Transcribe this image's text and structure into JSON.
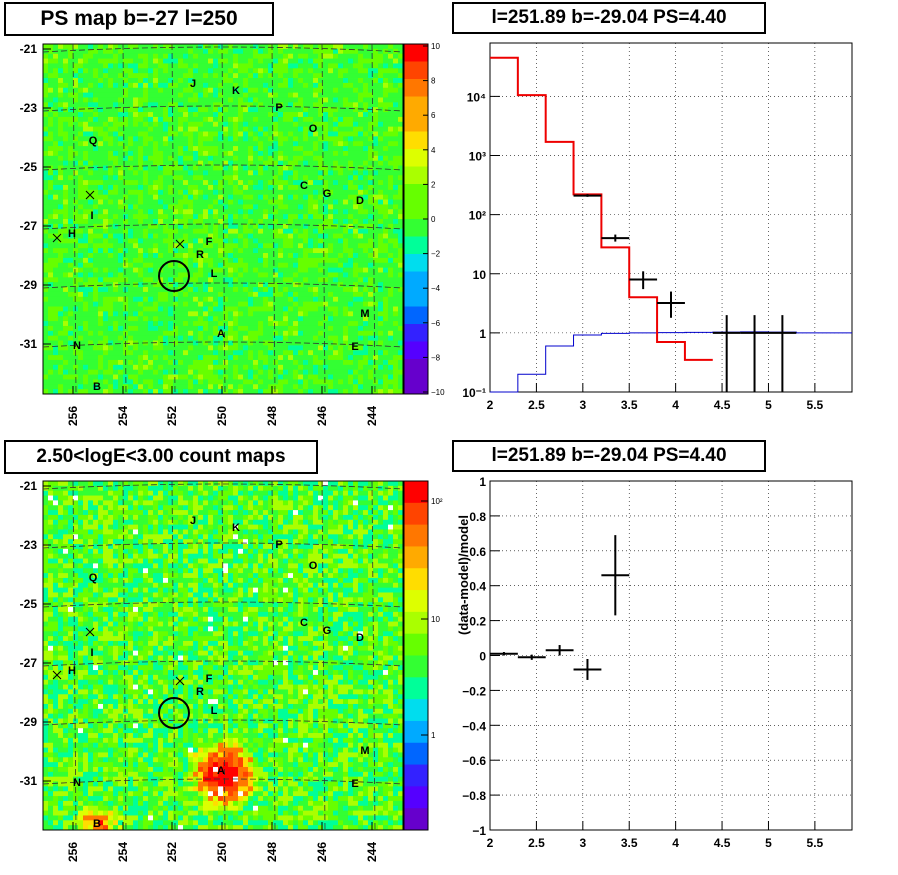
{
  "chart_data": [
    {
      "type": "heatmap",
      "title": "PS map b=-27 l=250",
      "x_ticks": [
        "256",
        "254",
        "252",
        "250",
        "248",
        "246",
        "244"
      ],
      "y_ticks": [
        "-21",
        "-23",
        "-25",
        "-27",
        "-29",
        "-31"
      ],
      "colorbar_ticks": [
        "10",
        "8",
        "6",
        "4",
        "2",
        "0",
        "−2",
        "−4",
        "−6",
        "−8",
        "−10"
      ],
      "colorbar_range": [
        -10,
        10
      ],
      "sources": [
        "J",
        "K",
        "P",
        "O",
        "Q",
        "C",
        "G",
        "D",
        "I",
        "H",
        "F",
        "R",
        "L",
        "M",
        "A",
        "N",
        "E",
        "B"
      ],
      "accent": "#00ff00"
    },
    {
      "type": "line",
      "title": "l=251.89 b=-29.04 PS=4.40",
      "y_scale": "log",
      "xlim": [
        2,
        5.9
      ],
      "ylim": [
        0.1,
        80000
      ],
      "x_ticks": [
        "2",
        "2.5",
        "3",
        "3.5",
        "4",
        "4.5",
        "5",
        "5.5"
      ],
      "y_ticks": [
        "10⁻¹",
        "1",
        "10",
        "10²",
        "10³",
        "10⁴"
      ],
      "grid": true,
      "model_red": {
        "bin_edges": [
          2,
          2.3,
          2.6,
          2.9,
          3.2,
          3.5,
          3.8,
          4.1,
          4.4
        ],
        "values": [
          45000,
          10500,
          1700,
          220,
          28,
          4,
          0.7,
          0.35
        ]
      },
      "model_blue": {
        "bin_edges": [
          2,
          2.3,
          2.6,
          2.9,
          3.2,
          3.5,
          3.8,
          4.1,
          4.4,
          4.7,
          5.0,
          5.3,
          5.9
        ],
        "values": [
          0.1,
          0.2,
          0.6,
          0.92,
          0.98,
          1.0,
          1.01,
          1.02,
          1.03,
          1.04,
          1.03,
          1.0
        ]
      },
      "data_points": [
        {
          "x": 3.05,
          "y": 210,
          "ylo": 200,
          "yhi": 222,
          "xerr": 0.15
        },
        {
          "x": 3.35,
          "y": 40,
          "ylo": 35,
          "yhi": 46,
          "xerr": 0.15
        },
        {
          "x": 3.65,
          "y": 8,
          "ylo": 5.5,
          "yhi": 11,
          "xerr": 0.15
        },
        {
          "x": 3.95,
          "y": 3.2,
          "ylo": 1.8,
          "yhi": 5,
          "xerr": 0.15
        },
        {
          "x": 4.55,
          "y": 1,
          "ylo": 0.1,
          "yhi": 2,
          "xerr": 0.15
        },
        {
          "x": 4.85,
          "y": 1,
          "ylo": 0.1,
          "yhi": 2,
          "xerr": 0.15
        },
        {
          "x": 5.15,
          "y": 1,
          "ylo": 0.1,
          "yhi": 2,
          "xerr": 0.15
        }
      ]
    },
    {
      "type": "heatmap",
      "title": "2.50<logE<3.00 count maps",
      "x_ticks": [
        "256",
        "254",
        "252",
        "250",
        "248",
        "246",
        "244"
      ],
      "y_ticks": [
        "-21",
        "-23",
        "-25",
        "-27",
        "-29",
        "-31"
      ],
      "colorbar_ticks": [
        "10²",
        "10",
        "1"
      ],
      "colorbar_scale": "log",
      "sources": [
        "J",
        "K",
        "P",
        "O",
        "Q",
        "C",
        "G",
        "D",
        "I",
        "H",
        "F",
        "R",
        "L",
        "M",
        "A",
        "N",
        "E",
        "B"
      ]
    },
    {
      "type": "scatter",
      "title": "l=251.89 b=-29.04 PS=4.40",
      "ylabel": "(data-model)/model",
      "xlim": [
        2,
        5.9
      ],
      "ylim": [
        -1,
        1
      ],
      "x_ticks": [
        "2",
        "2.5",
        "3",
        "3.5",
        "4",
        "4.5",
        "5",
        "5.5"
      ],
      "y_ticks": [
        "1",
        "0.8",
        "0.6",
        "0.4",
        "0.2",
        "0",
        "−0.2",
        "−0.4",
        "−0.6",
        "−0.8",
        "−1"
      ],
      "grid": true,
      "points": [
        {
          "x": 2.15,
          "y": 0.01,
          "err": 0.01,
          "xerr": 0.15
        },
        {
          "x": 2.45,
          "y": -0.01,
          "err": 0.015,
          "xerr": 0.15
        },
        {
          "x": 2.75,
          "y": 0.03,
          "err": 0.03,
          "xerr": 0.15
        },
        {
          "x": 3.05,
          "y": -0.08,
          "err": 0.06,
          "xerr": 0.15
        },
        {
          "x": 3.35,
          "y": 0.46,
          "err": 0.23,
          "xerr": 0.15
        }
      ]
    }
  ]
}
